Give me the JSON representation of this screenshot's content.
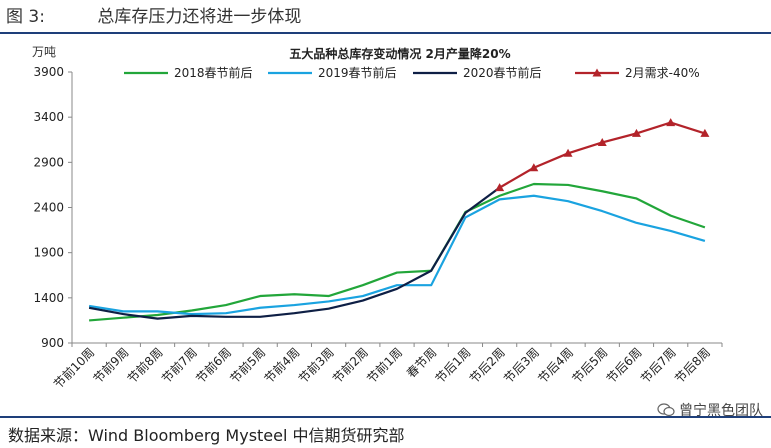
{
  "figure": {
    "label": "图 3:",
    "title": "总库存压力还将进一步体现"
  },
  "source": "数据来源：Wind Bloomberg Mysteel 中信期货研究部",
  "watermark": "曾宁黑色团队",
  "chart_data": {
    "type": "line",
    "title": "五大品种总库存变动情况 2月产量降20%",
    "ylabel": "万吨",
    "ylim": [
      900,
      3900
    ],
    "yticks": [
      900,
      1400,
      1900,
      2400,
      2900,
      3400,
      3900
    ],
    "categories": [
      "节前10周",
      "节前9周",
      "节前8周",
      "节前7周",
      "节前6周",
      "节前5周",
      "节前4周",
      "节前3周",
      "节前2周",
      "节前1周",
      "春节周",
      "节后1周",
      "节后2周",
      "节后3周",
      "节后4周",
      "节后5周",
      "节后6周",
      "节后7周",
      "节后8周"
    ],
    "legend_position": "top",
    "series": [
      {
        "name": "2018春节前后",
        "color": "#22a63a",
        "marker": "none",
        "values": [
          1150,
          1180,
          1210,
          1260,
          1320,
          1420,
          1440,
          1420,
          1540,
          1680,
          1700,
          2350,
          2530,
          2660,
          2650,
          2580,
          2500,
          2310,
          2180
        ]
      },
      {
        "name": "2019春节前后",
        "color": "#1aa3e0",
        "marker": "none",
        "values": [
          1310,
          1250,
          1250,
          1220,
          1230,
          1290,
          1320,
          1360,
          1420,
          1540,
          1540,
          2290,
          2490,
          2530,
          2470,
          2360,
          2230,
          2140,
          2030
        ]
      },
      {
        "name": "2020春节前后",
        "color": "#0e1f45",
        "marker": "none",
        "values": [
          1290,
          1220,
          1170,
          1200,
          1190,
          1190,
          1230,
          1280,
          1370,
          1500,
          1700,
          2340,
          2620,
          null,
          null,
          null,
          null,
          null,
          null
        ]
      },
      {
        "name": "2月需求-40%",
        "color": "#b3232a",
        "marker": "triangle",
        "values": [
          null,
          null,
          null,
          null,
          null,
          null,
          null,
          null,
          null,
          null,
          null,
          null,
          2620,
          2840,
          3000,
          3120,
          3220,
          3340,
          3220
        ]
      }
    ]
  }
}
